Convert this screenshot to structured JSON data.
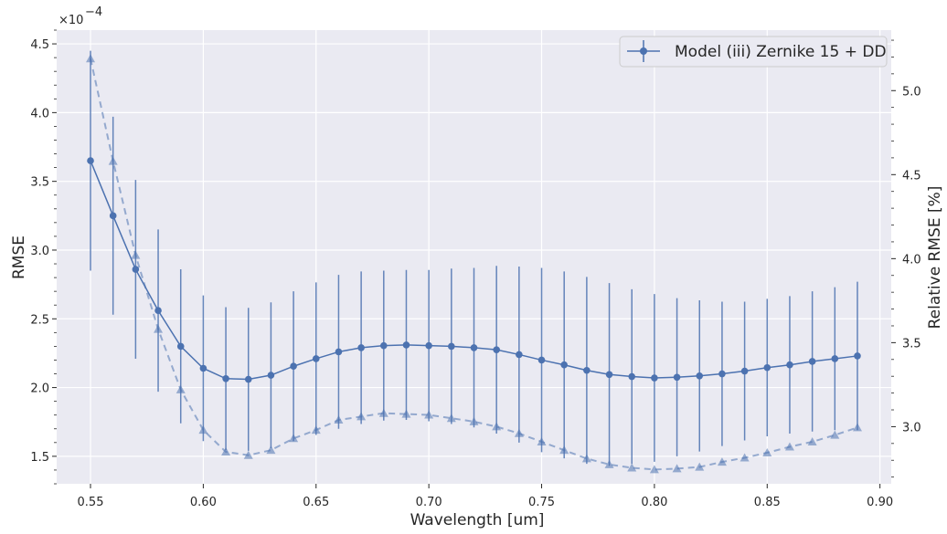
{
  "chart_data": {
    "type": "line",
    "xlabel": "Wavelength [um]",
    "ylabel": "RMSE",
    "y2label": "Relative RMSE [%]",
    "y_scale_label": "×10",
    "y_scale_exponent": "−4",
    "xlim": [
      0.535,
      0.905
    ],
    "ylim": [
      1.3,
      4.6
    ],
    "y2lim": [
      2.66,
      5.36
    ],
    "x_ticks": [
      "0.55",
      "0.60",
      "0.65",
      "0.70",
      "0.75",
      "0.80",
      "0.85",
      "0.90"
    ],
    "y_ticks": [
      "1.5",
      "2.0",
      "2.5",
      "3.0",
      "3.5",
      "4.0",
      "4.5"
    ],
    "y2_ticks": [
      "3.0",
      "3.5",
      "4.0",
      "4.5",
      "5.0"
    ],
    "grid": true,
    "legend_position": "top-right",
    "x": [
      0.55,
      0.56,
      0.57,
      0.58,
      0.59,
      0.6,
      0.61,
      0.62,
      0.63,
      0.64,
      0.65,
      0.66,
      0.67,
      0.68,
      0.69,
      0.7,
      0.71,
      0.72,
      0.73,
      0.74,
      0.75,
      0.76,
      0.77,
      0.78,
      0.79,
      0.8,
      0.81,
      0.82,
      0.83,
      0.84,
      0.85,
      0.86,
      0.87,
      0.88,
      0.89
    ],
    "series": [
      {
        "name": "Model (iii) Zernike 15 + DD",
        "axis": "left",
        "style": "solid-circle",
        "values": [
          3.65,
          3.25,
          2.86,
          2.56,
          2.3,
          2.14,
          2.065,
          2.06,
          2.09,
          2.155,
          2.21,
          2.26,
          2.29,
          2.305,
          2.31,
          2.305,
          2.3,
          2.29,
          2.275,
          2.24,
          2.2,
          2.165,
          2.125,
          2.095,
          2.08,
          2.07,
          2.075,
          2.085,
          2.1,
          2.12,
          2.145,
          2.165,
          2.19,
          2.21,
          2.23
        ],
        "error": [
          0.8,
          0.72,
          0.65,
          0.59,
          0.56,
          0.53,
          0.52,
          0.52,
          0.53,
          0.545,
          0.555,
          0.56,
          0.555,
          0.545,
          0.545,
          0.55,
          0.565,
          0.58,
          0.61,
          0.64,
          0.67,
          0.68,
          0.68,
          0.665,
          0.635,
          0.61,
          0.575,
          0.55,
          0.525,
          0.505,
          0.5,
          0.5,
          0.51,
          0.52,
          0.54
        ]
      },
      {
        "axis": "right",
        "style": "dashed-triangle",
        "values": [
          5.19,
          4.58,
          4.02,
          3.58,
          3.22,
          2.98,
          2.85,
          2.83,
          2.86,
          2.93,
          2.98,
          3.04,
          3.06,
          3.08,
          3.075,
          3.07,
          3.05,
          3.03,
          3.0,
          2.96,
          2.91,
          2.86,
          2.81,
          2.775,
          2.755,
          2.745,
          2.75,
          2.76,
          2.79,
          2.815,
          2.845,
          2.88,
          2.91,
          2.95,
          2.995
        ]
      }
    ],
    "colors": {
      "plot_bg": "#eaeaf2",
      "grid": "#ffffff",
      "series": "#4c72b0",
      "text": "#262626"
    }
  }
}
